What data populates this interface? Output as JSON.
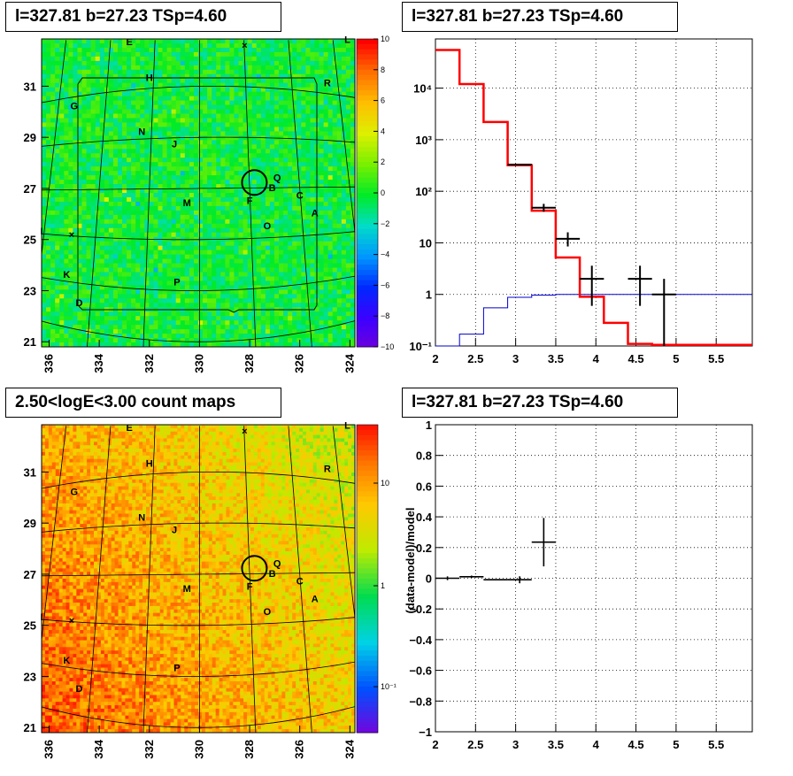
{
  "panels": {
    "tl": {
      "title": "l=327.81 b=27.23 TSp=4.60"
    },
    "tr": {
      "title": "l=327.81 b=27.23 TSp=4.60"
    },
    "bl": {
      "title": "2.50<logE<3.00 count maps"
    },
    "br": {
      "title": "l=327.81 b=27.23 TSp=4.60"
    }
  },
  "colors": {
    "model_line": "#ff0000",
    "background_line": "#0000cc",
    "data_points": "#000000"
  },
  "map": {
    "x_ticks": [
      "336",
      "334",
      "332",
      "330",
      "328",
      "326",
      "324"
    ],
    "y_ticks": [
      "31",
      "29",
      "27",
      "25",
      "23",
      "21"
    ],
    "letters": [
      {
        "t": "E",
        "lon": 332.8,
        "lat": 32.6
      },
      {
        "t": "L",
        "lon": 324.1,
        "lat": 32.7
      },
      {
        "t": "H",
        "lon": 332.0,
        "lat": 31.2
      },
      {
        "t": "R",
        "lon": 324.9,
        "lat": 31.0
      },
      {
        "t": "G",
        "lon": 335.0,
        "lat": 30.1
      },
      {
        "t": "N",
        "lon": 332.3,
        "lat": 29.1
      },
      {
        "t": "J",
        "lon": 331.0,
        "lat": 28.6
      },
      {
        "t": "Q",
        "lon": 326.9,
        "lat": 27.3
      },
      {
        "t": "B",
        "lon": 327.1,
        "lat": 26.9
      },
      {
        "t": "C",
        "lon": 326.0,
        "lat": 26.6
      },
      {
        "t": "F",
        "lon": 328.0,
        "lat": 26.4
      },
      {
        "t": "M",
        "lon": 330.5,
        "lat": 26.3
      },
      {
        "t": "A",
        "lon": 325.4,
        "lat": 25.9
      },
      {
        "t": "O",
        "lon": 327.3,
        "lat": 25.4
      },
      {
        "t": "I",
        "lon": 336.3,
        "lat": 25.2
      },
      {
        "t": "K",
        "lon": 335.3,
        "lat": 23.5
      },
      {
        "t": "P",
        "lon": 330.9,
        "lat": 23.2
      },
      {
        "t": "D",
        "lon": 334.8,
        "lat": 22.4
      }
    ],
    "crosses": [
      {
        "lon": 328.2,
        "lat": 32.6
      },
      {
        "lon": 335.1,
        "lat": 25.2
      }
    ],
    "source": {
      "lon": 327.81,
      "lat": 27.23
    }
  },
  "residual_colorbar": {
    "ticks": [
      "10",
      "8",
      "6",
      "4",
      "2",
      "0",
      "−2",
      "−4",
      "−6",
      "−8",
      "−10"
    ]
  },
  "count_colorbar": {
    "ticks": [
      "10",
      "1",
      "10⁻¹"
    ]
  },
  "chart_data": [
    {
      "type": "line",
      "description_of_panel": "spectrum",
      "x_ticks": [
        "2",
        "2.5",
        "3",
        "3.5",
        "4",
        "4.5",
        "5",
        "5.5"
      ],
      "y_ticks": [
        "10⁴",
        "10³",
        "10²",
        "10",
        "1",
        "10⁻¹"
      ],
      "xlim": [
        2,
        5.95
      ],
      "ylim": [
        0.1,
        90000
      ],
      "yscale": "log",
      "grid": true,
      "series": [
        {
          "step_edges": [
            2.0,
            2.3,
            2.6,
            2.9,
            3.2,
            3.5,
            3.8,
            4.1,
            4.4,
            4.7,
            5.0,
            5.95
          ],
          "values": [
            55000,
            12000,
            2200,
            320,
            42,
            5.2,
            0.9,
            0.28,
            0.11,
            0.105,
            0.105
          ]
        },
        {
          "step_edges": [
            2.0,
            2.3,
            2.6,
            2.9,
            3.2,
            3.5,
            3.8,
            5.95
          ],
          "values": [
            0.07,
            0.17,
            0.55,
            0.88,
            0.97,
            1.0,
            1.0
          ]
        },
        {
          "points": [
            {
              "x": 3.05,
              "y": 330,
              "xerr": 0.15
            },
            {
              "x": 3.35,
              "y": 48,
              "xerr": 0.15,
              "ylo": 40,
              "yhi": 57
            },
            {
              "x": 3.65,
              "y": 12,
              "xerr": 0.15,
              "ylo": 8.5,
              "yhi": 16
            },
            {
              "x": 3.95,
              "y": 2,
              "xerr": 0.15,
              "ylo": 0.6,
              "yhi": 3.6
            },
            {
              "x": 4.55,
              "y": 2,
              "xerr": 0.15,
              "ylo": 0.6,
              "yhi": 3.6
            },
            {
              "x": 4.85,
              "y": 1,
              "xerr": 0.15,
              "ylo": 0.1,
              "yhi": 2
            }
          ]
        }
      ]
    },
    {
      "type": "scatter",
      "description_of_panel": "residuals",
      "x_ticks": [
        "2",
        "2.5",
        "3",
        "3.5",
        "4",
        "4.5",
        "5",
        "5.5"
      ],
      "y_ticks": [
        "1",
        "0.8",
        "0.6",
        "0.4",
        "0.2",
        "0",
        "−0.2",
        "−0.4",
        "−0.6",
        "−0.8",
        "−1"
      ],
      "xlim": [
        2,
        5.95
      ],
      "ylim": [
        -1,
        1
      ],
      "ylabel": "(data-model)/model",
      "grid": true,
      "series": [
        {
          "points": [
            {
              "x": 2.15,
              "y": 0.0,
              "xerr": 0.15,
              "yerr": 0.005
            },
            {
              "x": 2.45,
              "y": 0.01,
              "xerr": 0.15,
              "yerr": 0.01
            },
            {
              "x": 2.75,
              "y": -0.01,
              "xerr": 0.15,
              "yerr": 0.02
            },
            {
              "x": 3.05,
              "y": -0.01,
              "xerr": 0.15,
              "yerr": 0.04
            },
            {
              "x": 3.35,
              "y": 0.235,
              "xerr": 0.15,
              "yerr": 0.175
            }
          ]
        }
      ]
    }
  ]
}
